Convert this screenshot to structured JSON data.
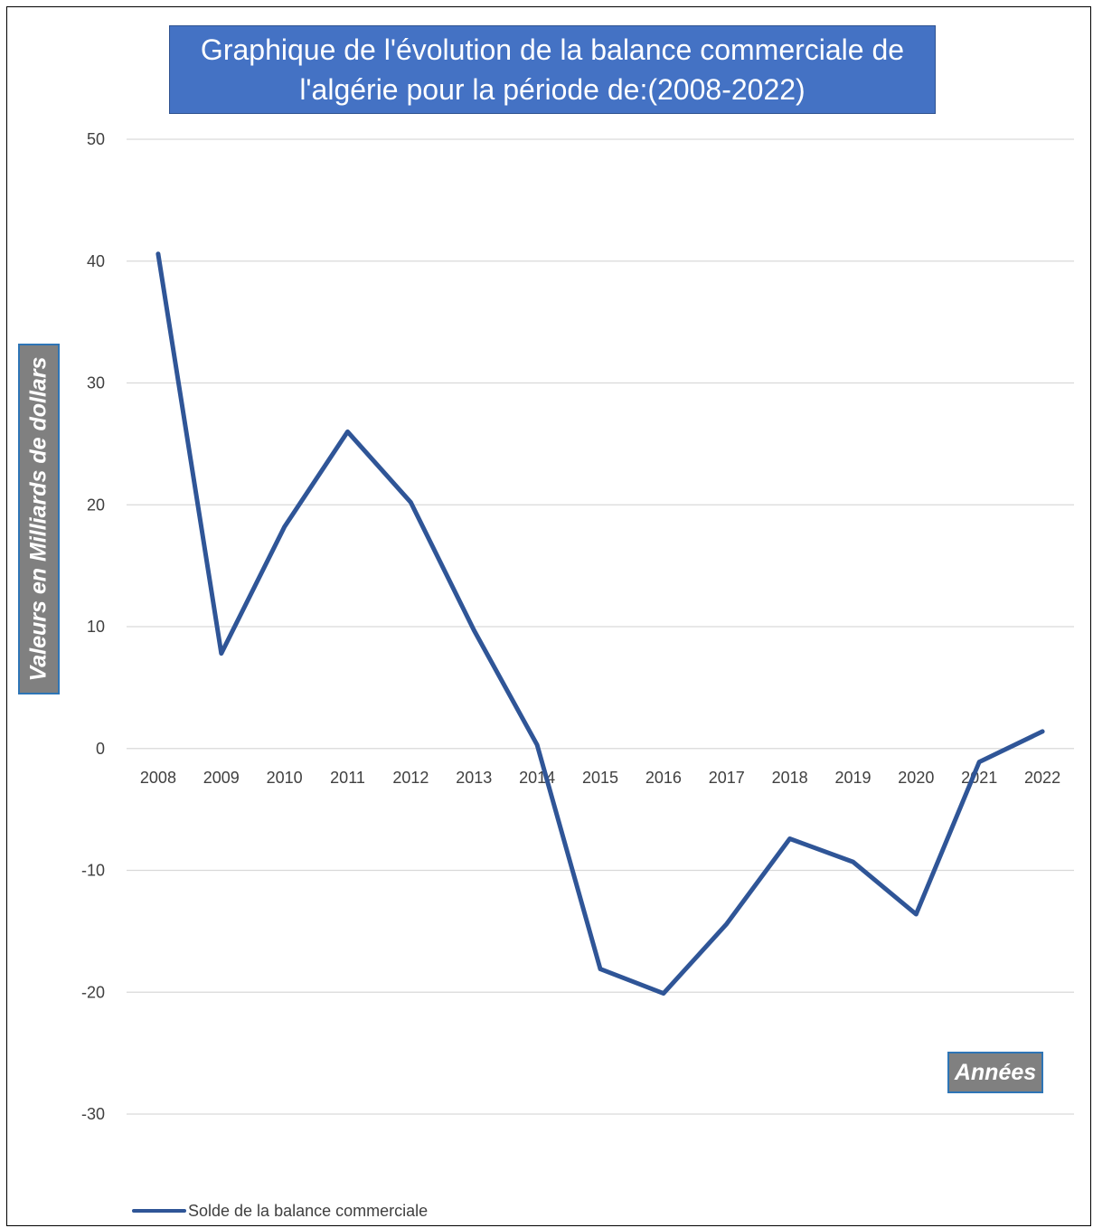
{
  "chart_data": {
    "type": "line",
    "title": "Graphique de l'évolution de la balance commerciale de l'algérie pour la période de:(2008-2022)",
    "xlabel": "Années",
    "ylabel": "Valeurs en Milliards de dollars",
    "categories": [
      "2008",
      "2009",
      "2010",
      "2011",
      "2012",
      "2013",
      "2014",
      "2015",
      "2016",
      "2017",
      "2018",
      "2019",
      "2020",
      "2021",
      "2022"
    ],
    "series": [
      {
        "name": "Solde de la balance commerciale",
        "values": [
          40.6,
          7.8,
          18.2,
          26.0,
          20.2,
          9.7,
          0.3,
          -18.1,
          -20.1,
          -14.4,
          -7.4,
          -9.3,
          -13.6,
          -1.1,
          1.4
        ],
        "color": "#2f5597"
      }
    ],
    "yticks": [
      "50",
      "40",
      "30",
      "20",
      "10",
      "0",
      "-10",
      "-20",
      "-30"
    ],
    "ylim": [
      -30,
      50
    ],
    "grid": true,
    "legend": "bottom-left",
    "colors": {
      "title_bg": "#4472c4",
      "axis_title_bg": "#808080",
      "axis_title_border": "#2e75b6",
      "gridline": "#d9d9d9"
    }
  }
}
